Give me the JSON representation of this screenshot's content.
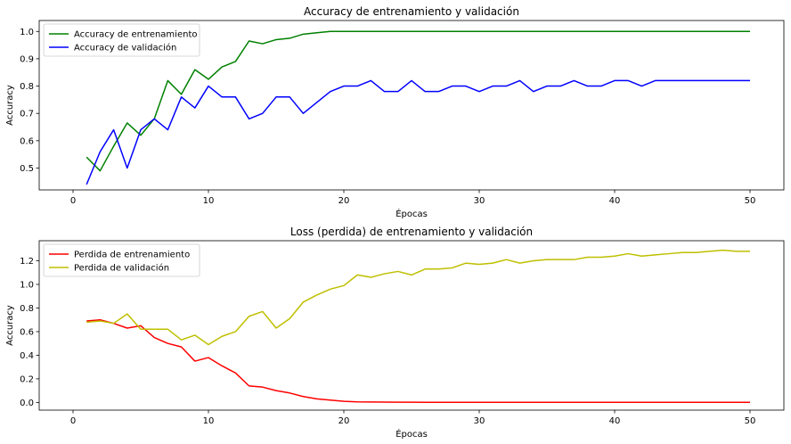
{
  "chart_data": [
    {
      "type": "line",
      "title": "Accuracy de entrenamiento y validación",
      "xlabel": "Épocas",
      "ylabel": "Accuracy",
      "xlim": [
        -2.5,
        52.5
      ],
      "ylim": [
        0.42,
        1.04
      ],
      "xticks": [
        0,
        10,
        20,
        30,
        40,
        50
      ],
      "yticks": [
        0.5,
        0.6,
        0.7,
        0.8,
        0.9,
        1.0
      ],
      "ytick_labels": [
        "0.5",
        "0.6",
        "0.7",
        "0.8",
        "0.9",
        "1.0"
      ],
      "grid": false,
      "legend_position": "upper-left",
      "x": [
        1,
        2,
        3,
        4,
        5,
        6,
        7,
        8,
        9,
        10,
        11,
        12,
        13,
        14,
        15,
        16,
        17,
        18,
        19,
        20,
        21,
        22,
        23,
        24,
        25,
        26,
        27,
        28,
        29,
        30,
        31,
        32,
        33,
        34,
        35,
        36,
        37,
        38,
        39,
        40,
        41,
        42,
        43,
        44,
        45,
        46,
        47,
        48,
        49,
        50
      ],
      "series": [
        {
          "name": "Accuracy de entrenamiento",
          "color": "#008000",
          "values": [
            0.54,
            0.49,
            0.58,
            0.665,
            0.62,
            0.68,
            0.82,
            0.77,
            0.86,
            0.825,
            0.87,
            0.89,
            0.965,
            0.955,
            0.97,
            0.975,
            0.99,
            0.995,
            1.0,
            1.0,
            1.0,
            1.0,
            1.0,
            1.0,
            1.0,
            1.0,
            1.0,
            1.0,
            1.0,
            1.0,
            1.0,
            1.0,
            1.0,
            1.0,
            1.0,
            1.0,
            1.0,
            1.0,
            1.0,
            1.0,
            1.0,
            1.0,
            1.0,
            1.0,
            1.0,
            1.0,
            1.0,
            1.0,
            1.0,
            1.0
          ]
        },
        {
          "name": "Accuracy de validación",
          "color": "#0000ff",
          "values": [
            0.44,
            0.56,
            0.64,
            0.5,
            0.64,
            0.68,
            0.64,
            0.76,
            0.72,
            0.8,
            0.76,
            0.76,
            0.68,
            0.7,
            0.76,
            0.76,
            0.7,
            0.74,
            0.78,
            0.8,
            0.8,
            0.82,
            0.78,
            0.78,
            0.82,
            0.78,
            0.78,
            0.8,
            0.8,
            0.78,
            0.8,
            0.8,
            0.82,
            0.78,
            0.8,
            0.8,
            0.82,
            0.8,
            0.8,
            0.82,
            0.82,
            0.8,
            0.82,
            0.82,
            0.82,
            0.82,
            0.82,
            0.82,
            0.82,
            0.82
          ]
        }
      ]
    },
    {
      "type": "line",
      "title": "Loss (perdida) de entrenamiento y validación",
      "xlabel": "Épocas",
      "ylabel": "Accuracy",
      "xlim": [
        -2.5,
        52.5
      ],
      "ylim": [
        -0.065,
        1.37
      ],
      "xticks": [
        0,
        10,
        20,
        30,
        40,
        50
      ],
      "yticks": [
        0.0,
        0.2,
        0.4,
        0.6,
        0.8,
        1.0,
        1.2
      ],
      "ytick_labels": [
        "0.0",
        "0.2",
        "0.4",
        "0.6",
        "0.8",
        "1.0",
        "1.2"
      ],
      "grid": false,
      "legend_position": "upper-left",
      "x": [
        1,
        2,
        3,
        4,
        5,
        6,
        7,
        8,
        9,
        10,
        11,
        12,
        13,
        14,
        15,
        16,
        17,
        18,
        19,
        20,
        21,
        22,
        23,
        24,
        25,
        26,
        27,
        28,
        29,
        30,
        31,
        32,
        33,
        34,
        35,
        36,
        37,
        38,
        39,
        40,
        41,
        42,
        43,
        44,
        45,
        46,
        47,
        48,
        49,
        50
      ],
      "series": [
        {
          "name": "Perdida de entrenamiento",
          "color": "#ff0000",
          "values": [
            0.69,
            0.7,
            0.67,
            0.63,
            0.65,
            0.55,
            0.5,
            0.47,
            0.35,
            0.38,
            0.31,
            0.25,
            0.14,
            0.13,
            0.1,
            0.08,
            0.05,
            0.03,
            0.02,
            0.01,
            0.005,
            0.004,
            0.003,
            0.002,
            0.002,
            0.001,
            0.001,
            0.001,
            0.001,
            0.001,
            0.001,
            0.001,
            0.001,
            0.001,
            0.001,
            0.001,
            0.001,
            0.001,
            0.001,
            0.001,
            0.001,
            0.001,
            0.001,
            0.001,
            0.001,
            0.001,
            0.001,
            0.001,
            0.001,
            0.001
          ]
        },
        {
          "name": "Perdida de validación",
          "color": "#bfbf00",
          "values": [
            0.68,
            0.69,
            0.67,
            0.75,
            0.62,
            0.62,
            0.62,
            0.53,
            0.57,
            0.49,
            0.56,
            0.6,
            0.73,
            0.77,
            0.63,
            0.71,
            0.85,
            0.91,
            0.96,
            0.99,
            1.08,
            1.06,
            1.09,
            1.11,
            1.08,
            1.13,
            1.13,
            1.14,
            1.18,
            1.17,
            1.18,
            1.21,
            1.18,
            1.2,
            1.21,
            1.21,
            1.21,
            1.23,
            1.23,
            1.24,
            1.26,
            1.24,
            1.25,
            1.26,
            1.27,
            1.27,
            1.28,
            1.29,
            1.28,
            1.28
          ]
        }
      ]
    }
  ]
}
